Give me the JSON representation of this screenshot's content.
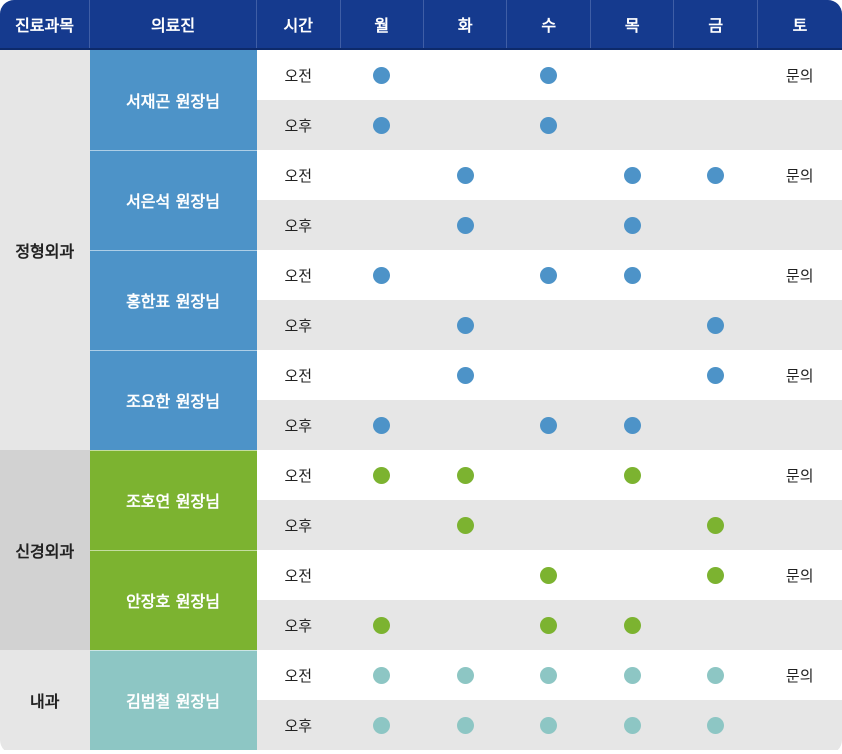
{
  "header": [
    "진료과목",
    "의료진",
    "시간",
    "월",
    "화",
    "수",
    "목",
    "금",
    "토"
  ],
  "time_labels": {
    "am": "오전",
    "pm": "오후"
  },
  "saturday_note": "문의",
  "colors": {
    "header_bg": "#153a8e",
    "blue": "#4d93c8",
    "green": "#7cb330",
    "teal": "#8dc6c4",
    "row_gray": "#e6e6e6"
  },
  "icons": {
    "schedule_marker": "circle-dot-icon"
  },
  "departments": [
    {
      "name": "정형외과",
      "color": "blue",
      "doctors": [
        {
          "name": "서재곤 원장님",
          "am": [
            1,
            0,
            1,
            0,
            0
          ],
          "pm": [
            1,
            0,
            1,
            0,
            0
          ],
          "sat_am": "문의",
          "sat_pm": ""
        },
        {
          "name": "서은석 원장님",
          "am": [
            0,
            1,
            0,
            1,
            1
          ],
          "pm": [
            0,
            1,
            0,
            1,
            0
          ],
          "sat_am": "문의",
          "sat_pm": ""
        },
        {
          "name": "홍한표 원장님",
          "am": [
            1,
            0,
            1,
            1,
            0
          ],
          "pm": [
            0,
            1,
            0,
            0,
            1
          ],
          "sat_am": "문의",
          "sat_pm": ""
        },
        {
          "name": "조요한 원장님",
          "am": [
            0,
            1,
            0,
            0,
            1
          ],
          "pm": [
            1,
            0,
            1,
            1,
            0
          ],
          "sat_am": "문의",
          "sat_pm": ""
        }
      ]
    },
    {
      "name": "신경외과",
      "color": "green",
      "doctors": [
        {
          "name": "조호연 원장님",
          "am": [
            1,
            1,
            0,
            1,
            0
          ],
          "pm": [
            0,
            1,
            0,
            0,
            1
          ],
          "sat_am": "문의",
          "sat_pm": ""
        },
        {
          "name": "안장호 원장님",
          "am": [
            0,
            0,
            1,
            0,
            1
          ],
          "pm": [
            1,
            0,
            1,
            1,
            0
          ],
          "sat_am": "문의",
          "sat_pm": ""
        }
      ]
    },
    {
      "name": "내과",
      "color": "teal",
      "doctors": [
        {
          "name": "김범철 원장님",
          "am": [
            1,
            1,
            1,
            1,
            1
          ],
          "pm": [
            1,
            1,
            1,
            1,
            1
          ],
          "sat_am": "문의",
          "sat_pm": ""
        }
      ]
    }
  ]
}
